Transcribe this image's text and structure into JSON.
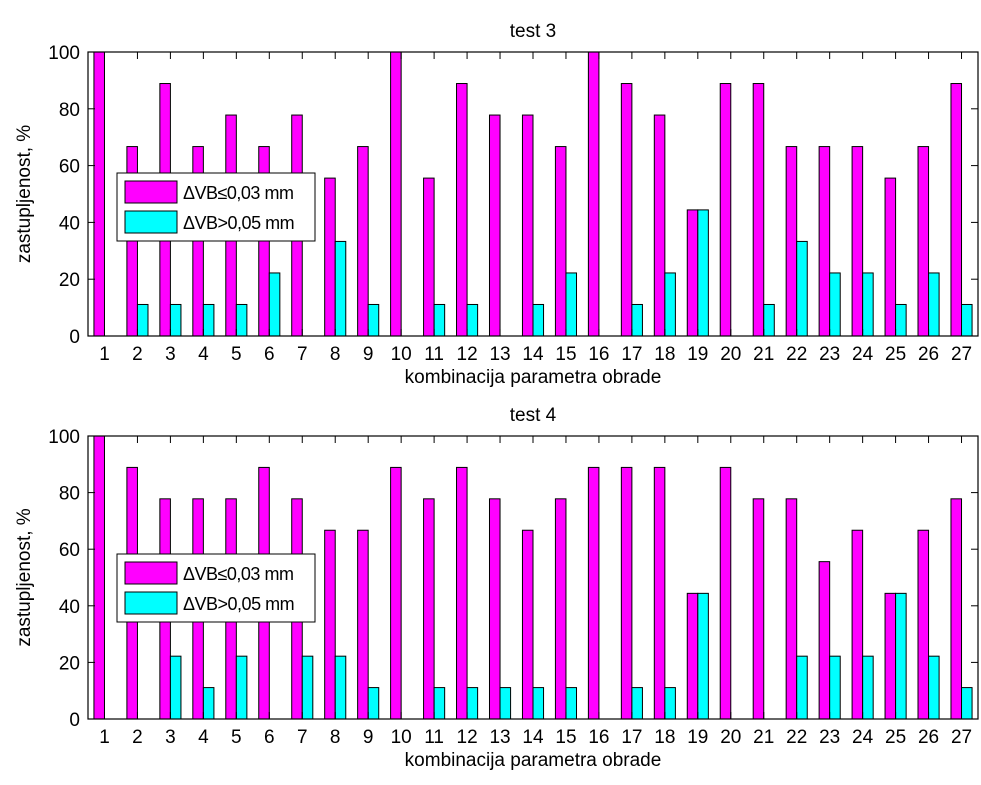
{
  "chart_data": [
    {
      "type": "bar",
      "title": "test 3",
      "xlabel": "kombinacija parametra obrade",
      "ylabel": "zastupljenost, %",
      "ylim": [
        0,
        100
      ],
      "yticks": [
        0,
        20,
        40,
        60,
        80,
        100
      ],
      "grid": false,
      "legend_position": "left",
      "categories": [
        "1",
        "2",
        "3",
        "4",
        "5",
        "6",
        "7",
        "8",
        "9",
        "10",
        "11",
        "12",
        "13",
        "14",
        "15",
        "16",
        "17",
        "18",
        "19",
        "20",
        "21",
        "22",
        "23",
        "24",
        "25",
        "26",
        "27"
      ],
      "series": [
        {
          "name": "ΔVB≤0,03 mm",
          "color": "#ff00ff",
          "values": [
            100,
            66.7,
            88.9,
            66.7,
            77.8,
            66.7,
            77.8,
            55.6,
            66.7,
            100,
            55.6,
            88.9,
            77.8,
            77.8,
            66.7,
            100,
            88.9,
            77.8,
            44.4,
            88.9,
            88.9,
            66.7,
            66.7,
            66.7,
            55.6,
            66.7,
            88.9
          ]
        },
        {
          "name": "ΔVB>0,05 mm",
          "color": "#00ffff",
          "values": [
            0,
            11.1,
            11.1,
            11.1,
            11.1,
            22.2,
            0,
            33.3,
            11.1,
            0,
            11.1,
            11.1,
            0,
            11.1,
            22.2,
            0,
            11.1,
            22.2,
            44.4,
            0,
            11.1,
            33.3,
            22.2,
            22.2,
            11.1,
            22.2,
            11.1
          ]
        }
      ]
    },
    {
      "type": "bar",
      "title": "test 4",
      "xlabel": "kombinacija parametra obrade",
      "ylabel": "zastupljenost, %",
      "ylim": [
        0,
        100
      ],
      "yticks": [
        0,
        20,
        40,
        60,
        80,
        100
      ],
      "grid": false,
      "legend_position": "left",
      "categories": [
        "1",
        "2",
        "3",
        "4",
        "5",
        "6",
        "7",
        "8",
        "9",
        "10",
        "11",
        "12",
        "13",
        "14",
        "15",
        "16",
        "17",
        "18",
        "19",
        "20",
        "21",
        "22",
        "23",
        "24",
        "25",
        "26",
        "27"
      ],
      "series": [
        {
          "name": "ΔVB≤0,03 mm",
          "color": "#ff00ff",
          "values": [
            100,
            88.9,
            77.8,
            77.8,
            77.8,
            88.9,
            77.8,
            66.7,
            66.7,
            88.9,
            77.8,
            88.9,
            77.8,
            66.7,
            77.8,
            88.9,
            88.9,
            88.9,
            44.4,
            88.9,
            77.8,
            77.8,
            55.6,
            66.7,
            44.4,
            66.7,
            77.8
          ]
        },
        {
          "name": "ΔVB>0,05 mm",
          "color": "#00ffff",
          "values": [
            0,
            0,
            22.2,
            11.1,
            22.2,
            0,
            22.2,
            22.2,
            11.1,
            0,
            11.1,
            11.1,
            11.1,
            11.1,
            11.1,
            0,
            11.1,
            11.1,
            44.4,
            0,
            0,
            22.2,
            22.2,
            22.2,
            44.4,
            22.2,
            11.1
          ]
        }
      ]
    }
  ]
}
